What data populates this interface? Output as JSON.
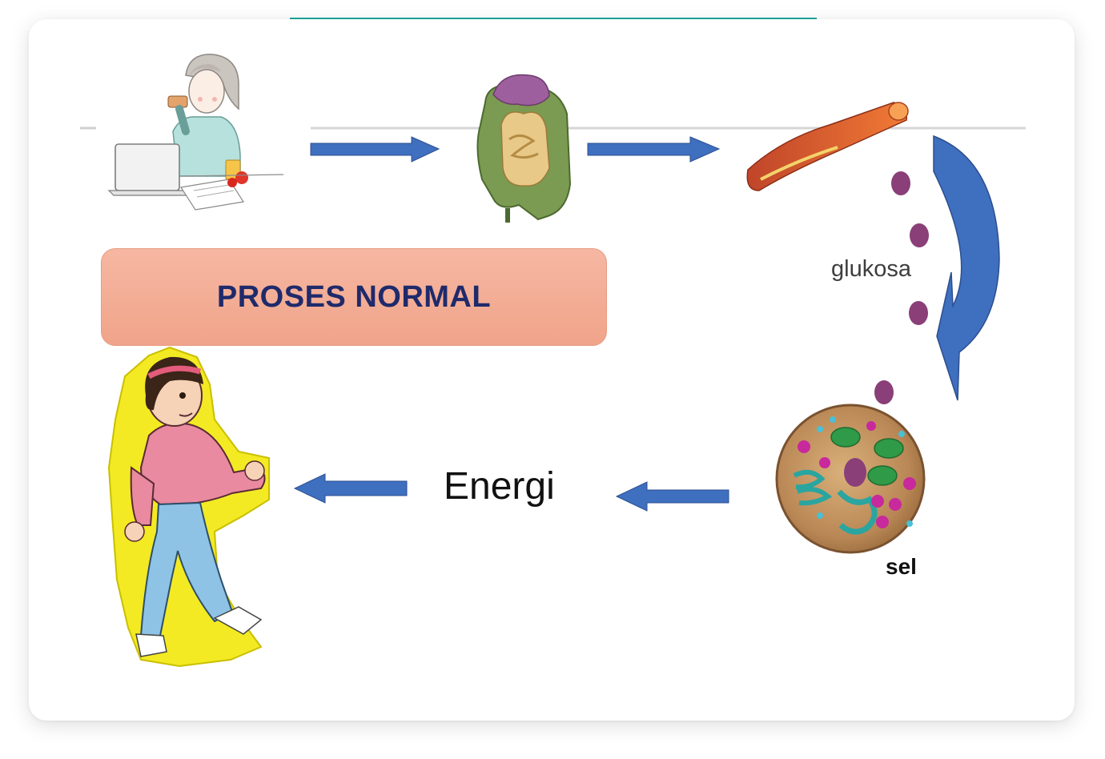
{
  "diagram": {
    "title": "PROSES NORMAL",
    "labels": {
      "glucose": "glukosa",
      "energy": "Energi",
      "cell": "sel"
    },
    "icons": [
      "woman-eating-icon",
      "digestive-system-icon",
      "blood-vessel-icon",
      "cell-icon",
      "walking-girl-icon"
    ],
    "colors": {
      "accent_bar": "#1fa89c",
      "arrow": "#3f6fbf",
      "title_box": "#f3ad93",
      "title_text": "#1f2a6b",
      "glucose_dot": "#8a3f78"
    }
  }
}
